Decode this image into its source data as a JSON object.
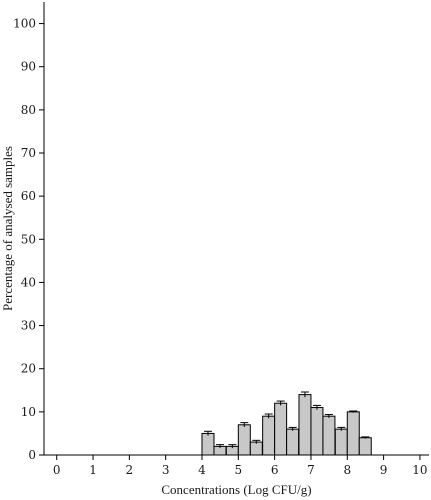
{
  "chart_data": {
    "type": "bar",
    "xlabel": "Concentrations (Log CFU/g)",
    "ylabel": "Percentage of analysed samples",
    "xlim": [
      -0.35,
      10.25
    ],
    "ylim": [
      0,
      105
    ],
    "xticks": [
      0,
      1,
      2,
      3,
      4,
      5,
      6,
      7,
      8,
      9,
      10
    ],
    "yticks": [
      0,
      10,
      20,
      30,
      40,
      50,
      60,
      70,
      80,
      90,
      100
    ],
    "bin_width": 0.33,
    "bar_color": "#c8c8c8",
    "bars": [
      {
        "x": 4.0,
        "value": 5.0,
        "error": 0.5
      },
      {
        "x": 4.33,
        "value": 2.0,
        "error": 0.4
      },
      {
        "x": 4.67,
        "value": 2.0,
        "error": 0.4
      },
      {
        "x": 5.0,
        "value": 7.0,
        "error": 0.5
      },
      {
        "x": 5.33,
        "value": 3.0,
        "error": 0.4
      },
      {
        "x": 5.67,
        "value": 9.0,
        "error": 0.5
      },
      {
        "x": 6.0,
        "value": 12.0,
        "error": 0.5
      },
      {
        "x": 6.33,
        "value": 6.0,
        "error": 0.4
      },
      {
        "x": 6.67,
        "value": 14.0,
        "error": 0.6
      },
      {
        "x": 7.0,
        "value": 11.0,
        "error": 0.5
      },
      {
        "x": 7.33,
        "value": 9.0,
        "error": 0.4
      },
      {
        "x": 7.67,
        "value": 6.0,
        "error": 0.4
      },
      {
        "x": 8.0,
        "value": 10.0,
        "error": 0.2
      },
      {
        "x": 8.33,
        "value": 4.0,
        "error": 0.2
      }
    ]
  }
}
